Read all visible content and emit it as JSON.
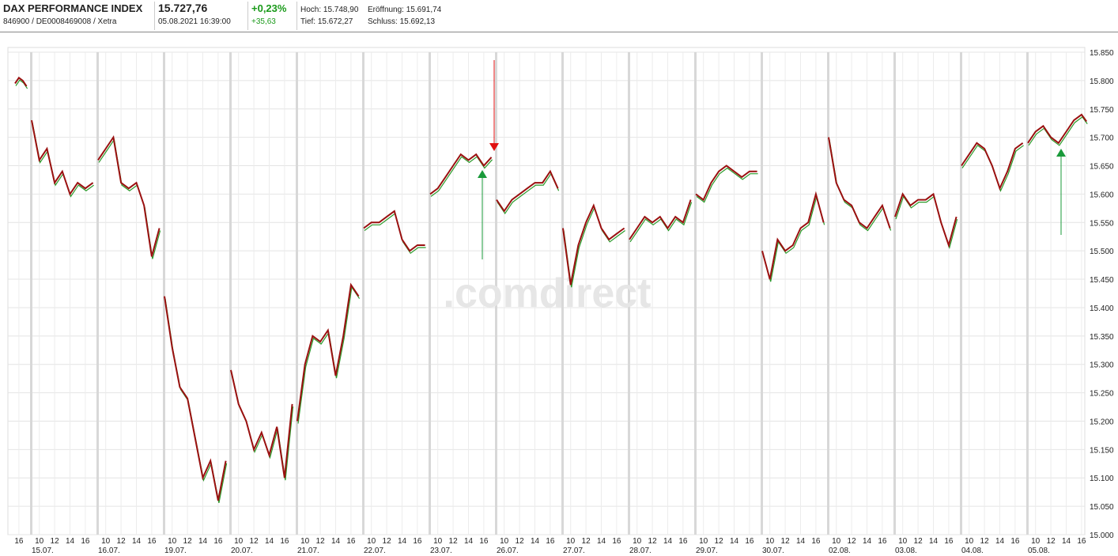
{
  "header": {
    "title": "DAX PERFORMANCE INDEX",
    "ids": "846900 / DE0008469008 / Xetra",
    "price": "15.727,76",
    "time": "05.08.2021 16:39:00",
    "change_pct": "+0,23%",
    "change_abs": "+35,63",
    "high": "Hoch: 15.748,90",
    "open": "Eröffnung: 15.691,74",
    "low": "Tief: 15.672,27",
    "close": "Schluss: 15.692,13"
  },
  "chart_data": {
    "type": "line",
    "watermark": ".comdirect",
    "color": "#9a1010",
    "ylim": [
      15000,
      15850
    ],
    "yticks": [
      {
        "value": 15000,
        "label": "15.000"
      },
      {
        "value": 15050,
        "label": "15.050"
      },
      {
        "value": 15100,
        "label": "15.100"
      },
      {
        "value": 15150,
        "label": "15.150"
      },
      {
        "value": 15200,
        "label": "15.200"
      },
      {
        "value": 15250,
        "label": "15.250"
      },
      {
        "value": 15300,
        "label": "15.300"
      },
      {
        "value": 15350,
        "label": "15.350"
      },
      {
        "value": 15400,
        "label": "15.400"
      },
      {
        "value": 15450,
        "label": "15.450"
      },
      {
        "value": 15500,
        "label": "15.500"
      },
      {
        "value": 15550,
        "label": "15.550"
      },
      {
        "value": 15600,
        "label": "15.600"
      },
      {
        "value": 15650,
        "label": "15.650"
      },
      {
        "value": 15700,
        "label": "15.700"
      },
      {
        "value": 15750,
        "label": "15.750"
      },
      {
        "value": 15800,
        "label": "15.800"
      },
      {
        "value": 15850,
        "label": "15.850"
      }
    ],
    "xticks": [
      10,
      12,
      14,
      16
    ],
    "days": [
      {
        "date": null,
        "hours": [
          15.5,
          16,
          16.5,
          17
        ],
        "values": [
          15795,
          15805,
          15800,
          15790
        ]
      },
      {
        "date": "15.07.",
        "hours": [
          9,
          10,
          11,
          12,
          13,
          14,
          15,
          16,
          17
        ],
        "values": [
          15730,
          15660,
          15680,
          15620,
          15640,
          15600,
          15620,
          15610,
          15620
        ]
      },
      {
        "date": "16.07.",
        "hours": [
          9,
          10,
          11,
          12,
          13,
          14,
          15,
          16,
          17
        ],
        "values": [
          15660,
          15680,
          15700,
          15620,
          15610,
          15620,
          15580,
          15490,
          15540
        ]
      },
      {
        "date": "19.07.",
        "hours": [
          9,
          10,
          11,
          12,
          13,
          14,
          15,
          16,
          17
        ],
        "values": [
          15420,
          15330,
          15260,
          15240,
          15170,
          15100,
          15130,
          15060,
          15130
        ]
      },
      {
        "date": "20.07.",
        "hours": [
          9,
          10,
          11,
          12,
          13,
          14,
          15,
          16,
          17
        ],
        "values": [
          15290,
          15230,
          15200,
          15150,
          15180,
          15140,
          15190,
          15100,
          15230
        ]
      },
      {
        "date": "21.07.",
        "hours": [
          9,
          10,
          11,
          12,
          13,
          14,
          15,
          16,
          17
        ],
        "values": [
          15200,
          15300,
          15350,
          15340,
          15360,
          15280,
          15350,
          15440,
          15420
        ]
      },
      {
        "date": "22.07.",
        "hours": [
          9,
          10,
          11,
          12,
          13,
          14,
          15,
          16,
          17
        ],
        "values": [
          15540,
          15550,
          15550,
          15560,
          15570,
          15520,
          15500,
          15510,
          15510
        ]
      },
      {
        "date": "23.07.",
        "hours": [
          9,
          10,
          11,
          12,
          13,
          14,
          15,
          16,
          17
        ],
        "values": [
          15600,
          15610,
          15630,
          15650,
          15670,
          15660,
          15670,
          15650,
          15665
        ]
      },
      {
        "date": "26.07.",
        "hours": [
          9,
          10,
          11,
          12,
          13,
          14,
          15,
          16,
          17
        ],
        "values": [
          15590,
          15570,
          15590,
          15600,
          15610,
          15620,
          15620,
          15640,
          15610
        ]
      },
      {
        "date": "27.07.",
        "hours": [
          9,
          10,
          11,
          12,
          13,
          14,
          15,
          16,
          17
        ],
        "values": [
          15540,
          15440,
          15510,
          15550,
          15580,
          15540,
          15520,
          15530,
          15540
        ]
      },
      {
        "date": "28.07.",
        "hours": [
          9,
          10,
          11,
          12,
          13,
          14,
          15,
          16,
          17
        ],
        "values": [
          15520,
          15540,
          15560,
          15550,
          15560,
          15540,
          15560,
          15550,
          15590
        ]
      },
      {
        "date": "29.07.",
        "hours": [
          9,
          10,
          11,
          12,
          13,
          14,
          15,
          16,
          17
        ],
        "values": [
          15600,
          15590,
          15620,
          15640,
          15650,
          15640,
          15630,
          15640,
          15640
        ]
      },
      {
        "date": "30.07.",
        "hours": [
          9,
          10,
          11,
          12,
          13,
          14,
          15,
          16,
          17
        ],
        "values": [
          15500,
          15450,
          15520,
          15500,
          15510,
          15540,
          15550,
          15600,
          15550
        ]
      },
      {
        "date": "02.08.",
        "hours": [
          9,
          10,
          11,
          12,
          13,
          14,
          15,
          16,
          17
        ],
        "values": [
          15700,
          15620,
          15590,
          15580,
          15550,
          15540,
          15560,
          15580,
          15540
        ]
      },
      {
        "date": "03.08.",
        "hours": [
          9,
          10,
          11,
          12,
          13,
          14,
          15,
          16,
          17
        ],
        "values": [
          15560,
          15600,
          15580,
          15590,
          15590,
          15600,
          15550,
          15510,
          15560
        ]
      },
      {
        "date": "04.08.",
        "hours": [
          9,
          10,
          11,
          12,
          13,
          14,
          15,
          16,
          17
        ],
        "values": [
          15650,
          15670,
          15690,
          15680,
          15650,
          15610,
          15640,
          15680,
          15690
        ]
      },
      {
        "date": "05.08.",
        "hours": [
          9,
          10,
          11,
          12,
          13,
          14,
          15,
          16,
          16.65
        ],
        "values": [
          15690,
          15710,
          15720,
          15700,
          15690,
          15710,
          15730,
          15740,
          15728
        ]
      }
    ]
  }
}
